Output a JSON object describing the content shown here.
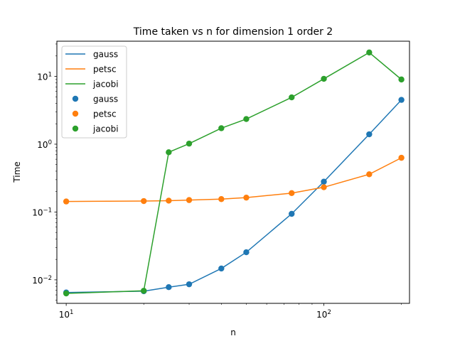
{
  "chart_data": {
    "type": "line",
    "title": "Time taken vs n for dimension 1 order 2",
    "xlabel": "n",
    "ylabel": "Time",
    "xscale": "log",
    "yscale": "log",
    "xlim": [
      9.2,
      215
    ],
    "ylim": [
      0.0045,
      33
    ],
    "grid": false,
    "legend_placement": "top-left",
    "x": [
      10,
      20,
      25,
      30,
      40,
      50,
      75,
      100,
      150,
      200
    ],
    "series": [
      {
        "name": "gauss",
        "color": "#1f77b4",
        "values": [
          0.0065,
          0.0068,
          0.0078,
          0.0086,
          0.0147,
          0.0255,
          0.094,
          0.28,
          1.4,
          4.5
        ]
      },
      {
        "name": "petsc",
        "color": "#ff7f0e",
        "values": [
          0.143,
          0.145,
          0.147,
          0.15,
          0.155,
          0.163,
          0.19,
          0.232,
          0.36,
          0.63
        ]
      },
      {
        "name": "jacobi",
        "color": "#2ca02c",
        "values": [
          0.0063,
          0.0069,
          0.76,
          1.02,
          1.72,
          2.35,
          4.9,
          9.2,
          22.5,
          9.0
        ]
      }
    ],
    "legend": {
      "lines": [
        "gauss",
        "petsc",
        "jacobi"
      ],
      "markers": [
        "gauss",
        "petsc",
        "jacobi"
      ]
    },
    "x_major_ticks": [
      {
        "value": 10,
        "base": "10",
        "exp": "1"
      },
      {
        "value": 100,
        "base": "10",
        "exp": "2"
      }
    ],
    "y_major_ticks": [
      {
        "value": 0.01,
        "base": "10",
        "exp": "−2"
      },
      {
        "value": 0.1,
        "base": "10",
        "exp": "−1"
      },
      {
        "value": 1,
        "base": "10",
        "exp": "0"
      },
      {
        "value": 10,
        "base": "10",
        "exp": "1"
      }
    ]
  }
}
